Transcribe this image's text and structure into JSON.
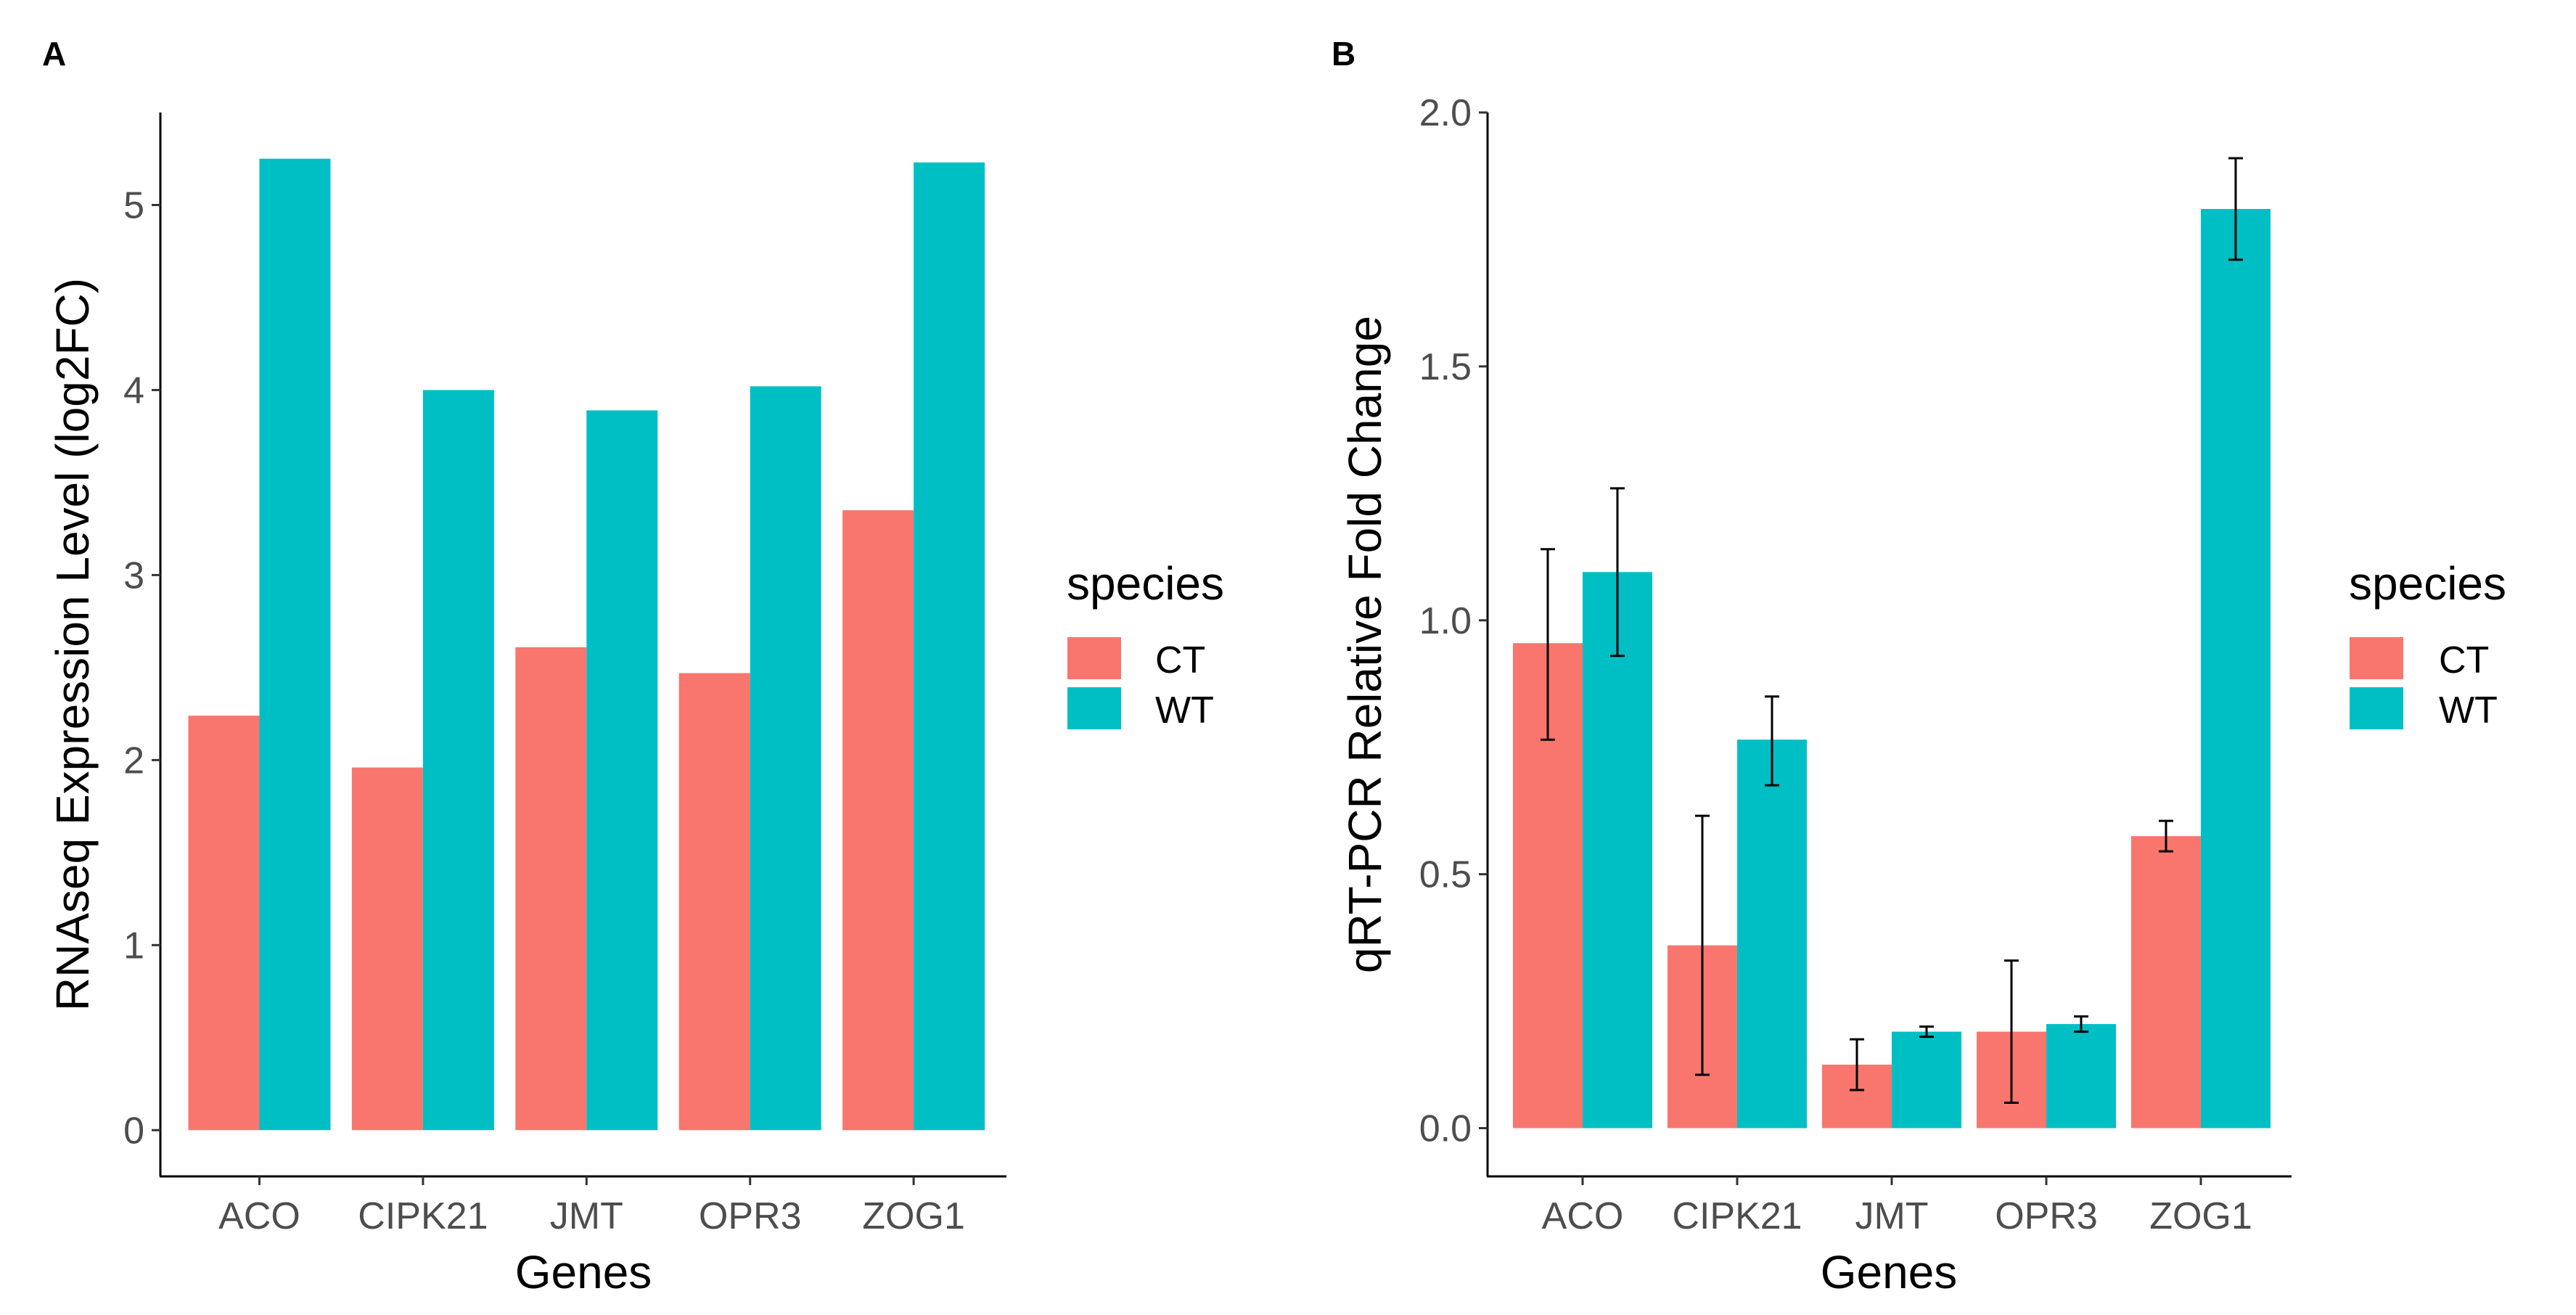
{
  "chart_data": [
    {
      "panel": "A",
      "type": "bar",
      "title": "",
      "xlabel": "Genes",
      "ylabel": "RNAseq Expression Level (log2FC)",
      "categories": [
        "ACO",
        "CIPK21",
        "JMT",
        "OPR3",
        "ZOG1"
      ],
      "series": [
        {
          "name": "CT",
          "color": "#F8766D",
          "values": [
            2.24,
            1.96,
            2.61,
            2.47,
            3.35
          ]
        },
        {
          "name": "WT",
          "color": "#00BFC4",
          "values": [
            5.25,
            4.0,
            3.89,
            4.02,
            5.23
          ]
        }
      ],
      "ylim": [
        -0.25,
        5.5
      ],
      "yticks": [
        0,
        1,
        2,
        3,
        4,
        5
      ],
      "legend": {
        "title": "species",
        "position": "right"
      }
    },
    {
      "panel": "B",
      "type": "bar",
      "title": "",
      "xlabel": "Genes",
      "ylabel": "qRT-PCR Relative Fold Change",
      "categories": [
        "ACO",
        "CIPK21",
        "JMT",
        "OPR3",
        "ZOG1"
      ],
      "series": [
        {
          "name": "CT",
          "color": "#F8766D",
          "values": [
            0.955,
            0.36,
            0.125,
            0.19,
            0.575
          ],
          "err_low": [
            0.765,
            0.105,
            0.075,
            0.05,
            0.545
          ],
          "err_high": [
            1.14,
            0.615,
            0.175,
            0.33,
            0.605
          ]
        },
        {
          "name": "WT",
          "color": "#00BFC4",
          "values": [
            1.095,
            0.765,
            0.19,
            0.205,
            1.81
          ],
          "err_low": [
            0.93,
            0.675,
            0.18,
            0.19,
            1.71
          ],
          "err_high": [
            1.26,
            0.85,
            0.2,
            0.22,
            1.91
          ]
        }
      ],
      "ylim": [
        -0.095,
        2.0
      ],
      "yticks": [
        "0.0",
        "0.5",
        "1.0",
        "1.5",
        "2.0"
      ],
      "legend": {
        "title": "species",
        "position": "right"
      }
    }
  ]
}
